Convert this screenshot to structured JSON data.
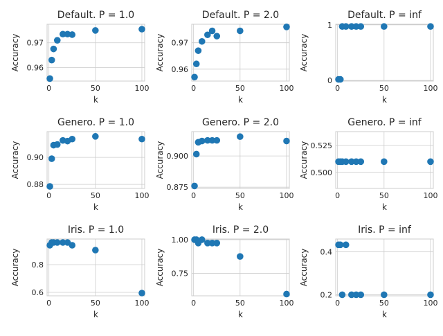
{
  "chart_data": [
    {
      "type": "scatter",
      "title": "Default. P = 1.0",
      "xlabel": "k",
      "ylabel": "Accuracy",
      "xlim": [
        -2,
        103
      ],
      "xticks": [
        0,
        50,
        100
      ],
      "ylim": [
        0.9545,
        0.9775
      ],
      "yticks": [
        0.96,
        0.97
      ],
      "x": [
        1,
        3,
        5,
        9,
        15,
        20,
        25,
        50,
        100
      ],
      "y": [
        0.9555,
        0.963,
        0.9675,
        0.971,
        0.9735,
        0.9735,
        0.9733,
        0.975,
        0.9755
      ],
      "grid": true,
      "color": "#1f77b4"
    },
    {
      "type": "scatter",
      "title": "Default. P = 2.0",
      "xlabel": "k",
      "ylabel": "Accuracy",
      "xlim": [
        -2,
        103
      ],
      "xticks": [
        0,
        50,
        100
      ],
      "ylim": [
        0.9555,
        0.977
      ],
      "yticks": [
        0.96,
        0.97
      ],
      "x": [
        1,
        3,
        5,
        9,
        15,
        20,
        25,
        50,
        100
      ],
      "y": [
        0.957,
        0.962,
        0.967,
        0.9705,
        0.973,
        0.9745,
        0.9725,
        0.9745,
        0.976
      ],
      "grid": true,
      "color": "#1f77b4"
    },
    {
      "type": "scatter",
      "title": "Default. P = inf",
      "xlabel": "k",
      "ylabel": "Accuracy",
      "xlim": [
        -2,
        103
      ],
      "xticks": [
        0,
        50,
        100
      ],
      "ylim": [
        -0.01,
        1.01
      ],
      "yticks": [
        0,
        1
      ],
      "y_tick_labels": [
        "0",
        "1"
      ],
      "x": [
        1,
        3,
        5,
        9,
        15,
        20,
        25,
        50,
        100
      ],
      "y": [
        0.02,
        0.02,
        0.97,
        0.97,
        0.97,
        0.97,
        0.97,
        0.97,
        0.97
      ],
      "grid": true,
      "color": "#1f77b4"
    },
    {
      "type": "scatter",
      "title": "Genero. P = 1.0",
      "xlabel": "k",
      "ylabel": "Accuracy",
      "xlim": [
        -2,
        103
      ],
      "xticks": [
        0,
        50,
        100
      ],
      "ylim": [
        0.877,
        0.919
      ],
      "yticks": [
        0.88,
        0.9
      ],
      "y_tick_labels": [
        "0.88",
        "0.90"
      ],
      "x": [
        1,
        3,
        5,
        9,
        15,
        20,
        25,
        50,
        100
      ],
      "y": [
        0.8785,
        0.899,
        0.909,
        0.9095,
        0.9125,
        0.912,
        0.9135,
        0.9155,
        0.9135
      ],
      "grid": true,
      "color": "#1f77b4"
    },
    {
      "type": "scatter",
      "title": "Genero. P = 2.0",
      "xlabel": "k",
      "ylabel": "Accuracy",
      "xlim": [
        -2,
        103
      ],
      "xticks": [
        0,
        50,
        100
      ],
      "ylim": [
        0.874,
        0.9195
      ],
      "yticks": [
        0.875,
        0.9
      ],
      "y_tick_labels": [
        "0.875",
        "0.900"
      ],
      "x": [
        1,
        3,
        5,
        9,
        15,
        20,
        25,
        50,
        100
      ],
      "y": [
        0.876,
        0.9015,
        0.911,
        0.912,
        0.9125,
        0.9125,
        0.9125,
        0.9155,
        0.912
      ],
      "grid": true,
      "color": "#1f77b4"
    },
    {
      "type": "scatter",
      "title": "Genero. P = inf",
      "xlabel": "k",
      "ylabel": "Accuracy",
      "xlim": [
        -2,
        103
      ],
      "xticks": [
        0,
        50,
        100
      ],
      "ylim": [
        0.485,
        0.538
      ],
      "yticks": [
        0.5,
        0.525
      ],
      "y_tick_labels": [
        "0.500",
        "0.525"
      ],
      "x": [
        1,
        3,
        5,
        9,
        15,
        20,
        25,
        50,
        100
      ],
      "y": [
        0.51,
        0.51,
        0.51,
        0.51,
        0.51,
        0.51,
        0.51,
        0.51,
        0.51
      ],
      "grid": true,
      "color": "#1f77b4"
    },
    {
      "type": "scatter",
      "title": "Iris. P = 1.0",
      "xlabel": "k",
      "ylabel": "Accuracy",
      "xlim": [
        -2,
        103
      ],
      "xticks": [
        0,
        50,
        100
      ],
      "ylim": [
        0.575,
        0.985
      ],
      "yticks": [
        0.6,
        0.8
      ],
      "y_tick_labels": [
        "0.6",
        "0.8"
      ],
      "x": [
        1,
        3,
        5,
        9,
        15,
        20,
        25,
        50,
        100
      ],
      "y": [
        0.94,
        0.96,
        0.96,
        0.96,
        0.96,
        0.96,
        0.94,
        0.905,
        0.595
      ],
      "grid": true,
      "color": "#1f77b4"
    },
    {
      "type": "scatter",
      "title": "Iris. P = 2.0",
      "xlabel": "k",
      "ylabel": "Accuracy",
      "xlim": [
        -2,
        103
      ],
      "xticks": [
        0,
        50,
        100
      ],
      "ylim": [
        0.582,
        1.005
      ],
      "yticks": [
        0.75,
        1.0
      ],
      "y_tick_labels": [
        "0.75",
        "1.00"
      ],
      "x": [
        1,
        3,
        5,
        9,
        15,
        20,
        25,
        50,
        100
      ],
      "y": [
        1.0,
        1.0,
        0.975,
        1.0,
        0.975,
        0.975,
        0.975,
        0.875,
        0.595
      ],
      "grid": true,
      "color": "#1f77b4"
    },
    {
      "type": "scatter",
      "title": "Iris. P = inf",
      "xlabel": "k",
      "ylabel": "Accuracy",
      "xlim": [
        -2,
        103
      ],
      "xticks": [
        0,
        50,
        100
      ],
      "ylim": [
        0.195,
        0.46
      ],
      "yticks": [
        0.2,
        0.4
      ],
      "y_tick_labels": [
        "0.2",
        "0.4"
      ],
      "x": [
        1,
        3,
        5,
        9,
        15,
        20,
        25,
        50,
        100
      ],
      "y": [
        0.433,
        0.433,
        0.2,
        0.433,
        0.2,
        0.2,
        0.2,
        0.2,
        0.2
      ],
      "grid": true,
      "color": "#1f77b4"
    }
  ]
}
